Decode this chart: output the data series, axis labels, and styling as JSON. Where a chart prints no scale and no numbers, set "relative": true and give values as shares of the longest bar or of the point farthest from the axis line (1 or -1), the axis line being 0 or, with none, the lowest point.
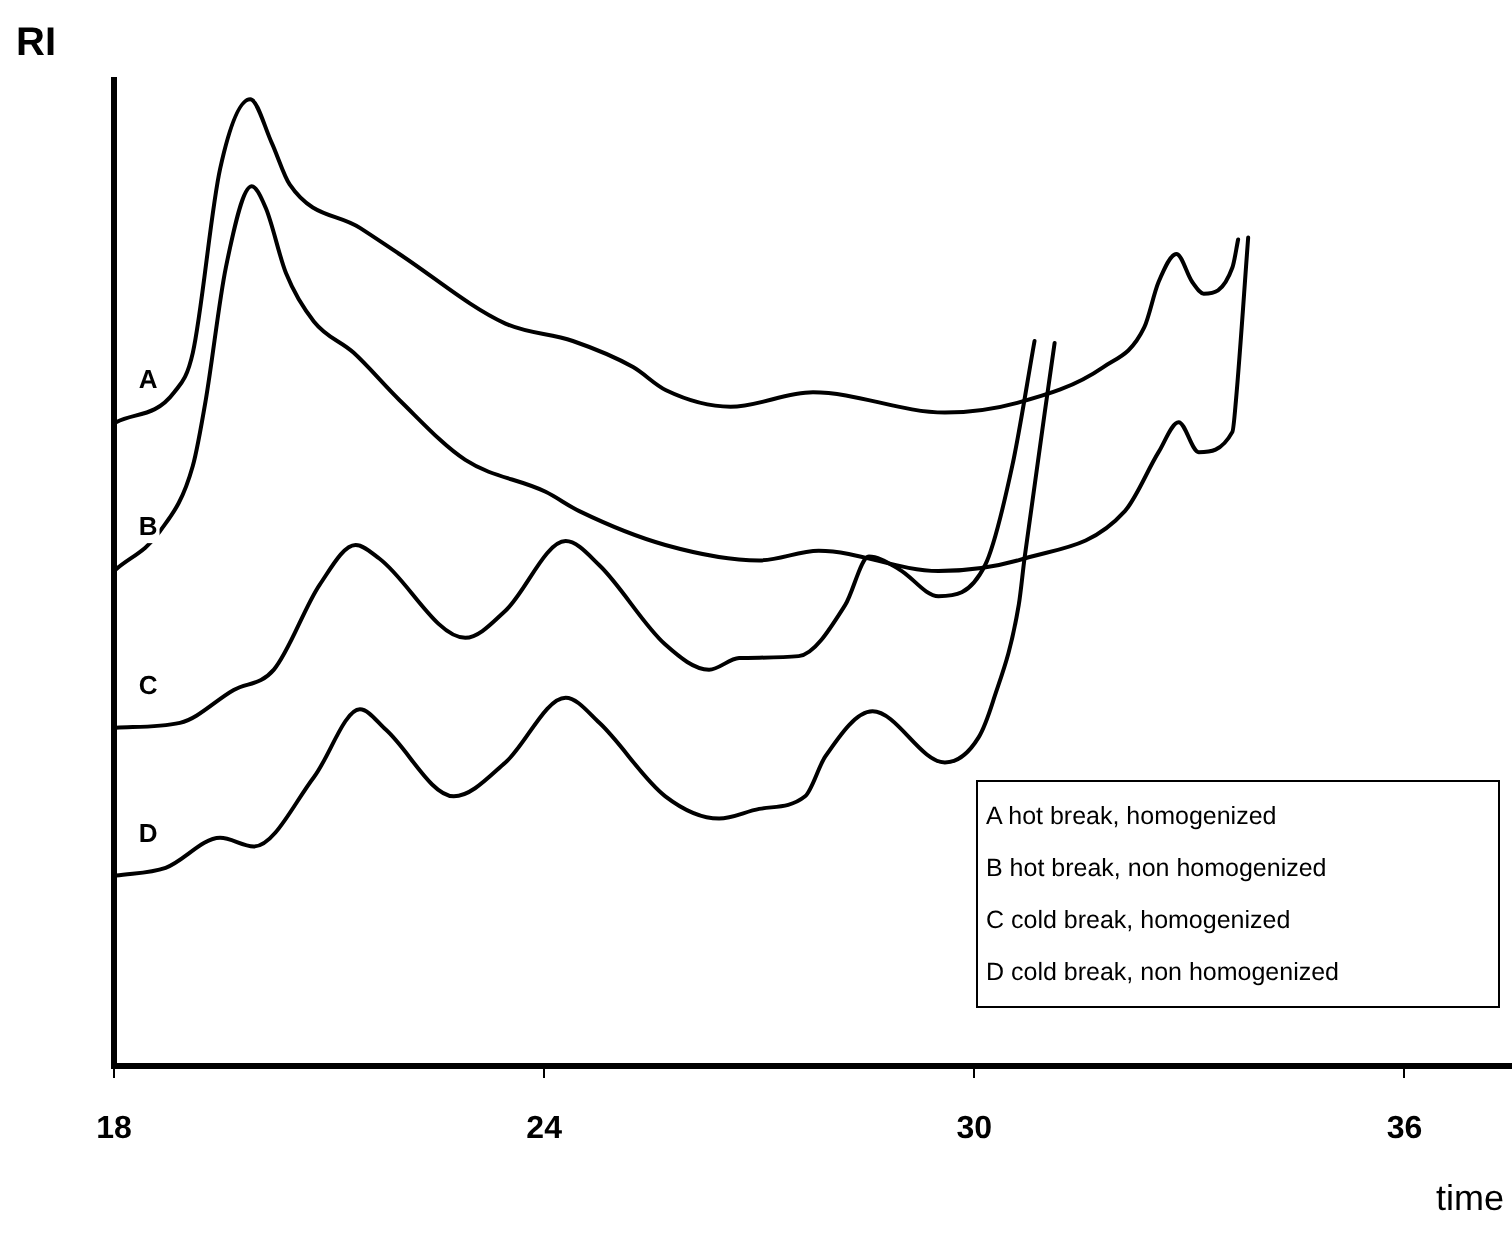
{
  "chart_data": {
    "type": "line",
    "relative": true,
    "xlabel": "time",
    "ylabel": "RI",
    "xlim": [
      18,
      37.5
    ],
    "xticks": [
      18,
      24,
      30,
      36
    ],
    "grid": false,
    "legend": false,
    "marker": "none",
    "line_style": "solid",
    "annotations": [
      "A  hot break, homogenized",
      "B  hot break, non homogenized",
      "C  cold break, homogenized",
      "D  cold break, non homogenized"
    ],
    "series": [
      {
        "name": "A",
        "color": "#000000",
        "x": [
          18.03,
          18.84,
          19.1,
          19.48,
          19.9,
          20.2,
          20.45,
          21.43,
          21.98,
          23.46,
          24.4,
          25.24,
          25.7,
          26.6,
          27.75,
          29.59,
          30.6,
          31.8,
          32.37,
          32.57,
          32.82,
          33.04,
          33.2,
          33.6,
          33.68
        ],
        "values": [
          0.666,
          0.697,
          0.738,
          0.928,
          1.0,
          0.955,
          0.912,
          0.867,
          0.84,
          0.768,
          0.75,
          0.723,
          0.699,
          0.682,
          0.697,
          0.676,
          0.686,
          0.723,
          0.764,
          0.811,
          0.84,
          0.811,
          0.799,
          0.826,
          0.855
        ]
      },
      {
        "name": "B",
        "color": "#000000",
        "x": [
          18.03,
          18.64,
          19.1,
          19.28,
          19.56,
          19.92,
          20.12,
          20.4,
          20.79,
          21.34,
          21.98,
          22.9,
          24.02,
          24.49,
          25.69,
          27.0,
          27.83,
          29.5,
          30.7,
          32.1,
          32.57,
          32.85,
          33.13,
          33.6,
          33.65,
          33.82
        ],
        "values": [
          0.514,
          0.553,
          0.621,
          0.689,
          0.826,
          0.91,
          0.887,
          0.82,
          0.77,
          0.738,
          0.689,
          0.627,
          0.594,
          0.574,
          0.539,
          0.523,
          0.533,
          0.512,
          0.525,
          0.574,
          0.635,
          0.666,
          0.635,
          0.656,
          0.689,
          0.857
        ]
      },
      {
        "name": "C",
        "color": "#000000",
        "x": [
          18.03,
          18.92,
          19.67,
          20.23,
          20.87,
          21.37,
          21.7,
          22.9,
          23.46,
          24.3,
          24.77,
          25.69,
          26.3,
          26.72,
          27.55,
          28.2,
          28.53,
          28.95,
          29.5,
          30.15,
          30.53,
          30.84
        ],
        "values": [
          0.35,
          0.355,
          0.389,
          0.41,
          0.498,
          0.539,
          0.525,
          0.443,
          0.471,
          0.543,
          0.518,
          0.436,
          0.41,
          0.422,
          0.424,
          0.477,
          0.527,
          0.514,
          0.486,
          0.518,
          0.621,
          0.75
        ]
      },
      {
        "name": "D",
        "color": "#000000",
        "x": [
          18.03,
          18.72,
          19.48,
          19.95,
          20.79,
          21.43,
          21.79,
          22.74,
          23.46,
          24.3,
          24.77,
          25.69,
          26.44,
          27.0,
          27.64,
          27.92,
          28.58,
          29.59,
          30.06,
          30.26,
          30.62,
          30.7,
          31.12
        ],
        "values": [
          0.197,
          0.205,
          0.236,
          0.227,
          0.299,
          0.369,
          0.348,
          0.279,
          0.314,
          0.381,
          0.355,
          0.279,
          0.256,
          0.266,
          0.279,
          0.32,
          0.367,
          0.314,
          0.34,
          0.377,
          0.477,
          0.525,
          0.748
        ]
      }
    ]
  }
}
